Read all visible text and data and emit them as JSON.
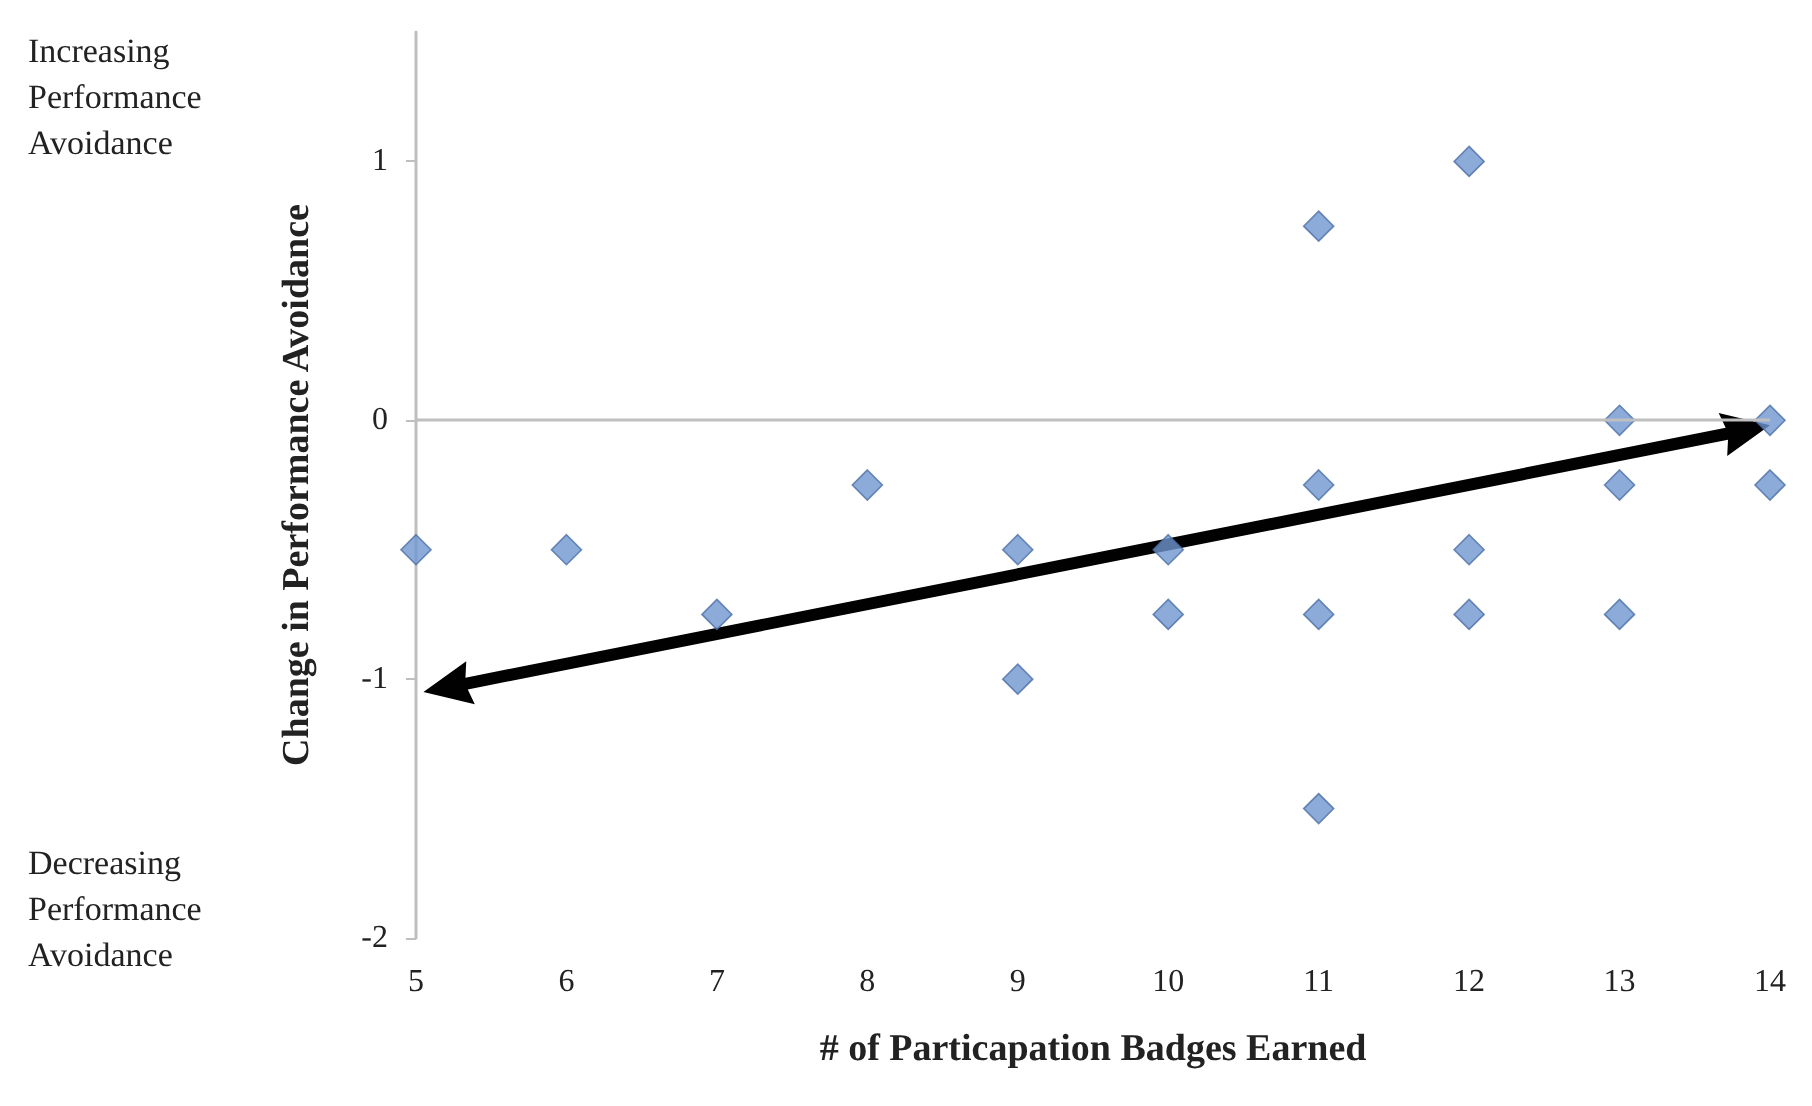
{
  "chart_data": {
    "type": "scatter",
    "xlabel": "# of Particapation Badges Earned",
    "ylabel": "Change in Performance Avoidance",
    "annotations": [
      "Increasing Performance Avoidance",
      "Decreasing Performance Avoidance"
    ],
    "xlim": [
      5,
      14
    ],
    "xticks": [
      5,
      6,
      7,
      8,
      9,
      10,
      11,
      12,
      13,
      14
    ],
    "ylim": [
      -2,
      1.5
    ],
    "yticks": [
      -2,
      -1,
      0,
      1
    ],
    "grid": false,
    "marker": "diamond",
    "ref_lines": [
      {
        "axis": "y",
        "value": 0,
        "color": "#bfbfbf"
      }
    ],
    "series": [
      {
        "color": "#6f96d0",
        "x": [
          5,
          6,
          7,
          8,
          9,
          9,
          10,
          10,
          11,
          11,
          11,
          11,
          12,
          12,
          12,
          13,
          13,
          13,
          14,
          14
        ],
        "values": [
          -0.5,
          -0.5,
          -0.75,
          -0.25,
          -0.5,
          -1,
          -0.5,
          -0.75,
          0.75,
          -0.25,
          -0.75,
          -1.5,
          1,
          -0.5,
          -0.75,
          0,
          -0.25,
          -0.75,
          0,
          -0.25
        ]
      }
    ]
  }
}
